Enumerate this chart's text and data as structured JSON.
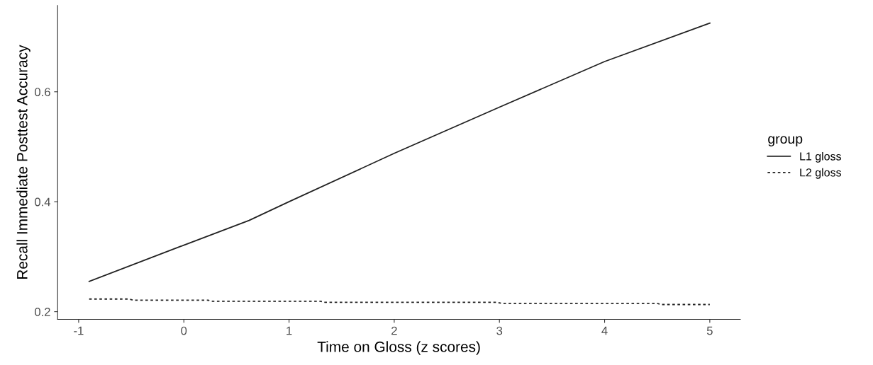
{
  "chart_data": {
    "type": "line",
    "xlabel": "Time on Gloss (z scores)",
    "ylabel": "Recall Immediate Posttest Accuracy",
    "legend_title": "group",
    "legend": "right",
    "grid": false,
    "xlim": [
      -1.2,
      5.29
    ],
    "xticks": [
      -1,
      0,
      1,
      2,
      3,
      4,
      5
    ],
    "ylim": [
      0.186,
      0.757
    ],
    "yticks": [
      0.2,
      0.4,
      0.6
    ],
    "series": [
      {
        "name": "L1 gloss",
        "color": "#222222",
        "line_style": "solid",
        "x": [
          -0.9,
          0,
          0.62,
          1,
          2,
          3,
          4,
          5
        ],
        "values": [
          0.255,
          0.321,
          0.366,
          0.4,
          0.488,
          0.572,
          0.655,
          0.725
        ]
      },
      {
        "name": "L2 gloss",
        "color": "#222222",
        "line_style": "dotted",
        "x": [
          -0.9,
          -0.52,
          -0.48,
          0.23,
          0.27,
          1.3,
          1.34,
          2.98,
          3.02,
          4.5,
          4.54,
          5
        ],
        "values": [
          0.223,
          0.223,
          0.221,
          0.221,
          0.219,
          0.219,
          0.217,
          0.217,
          0.215,
          0.215,
          0.213,
          0.213
        ]
      }
    ]
  }
}
